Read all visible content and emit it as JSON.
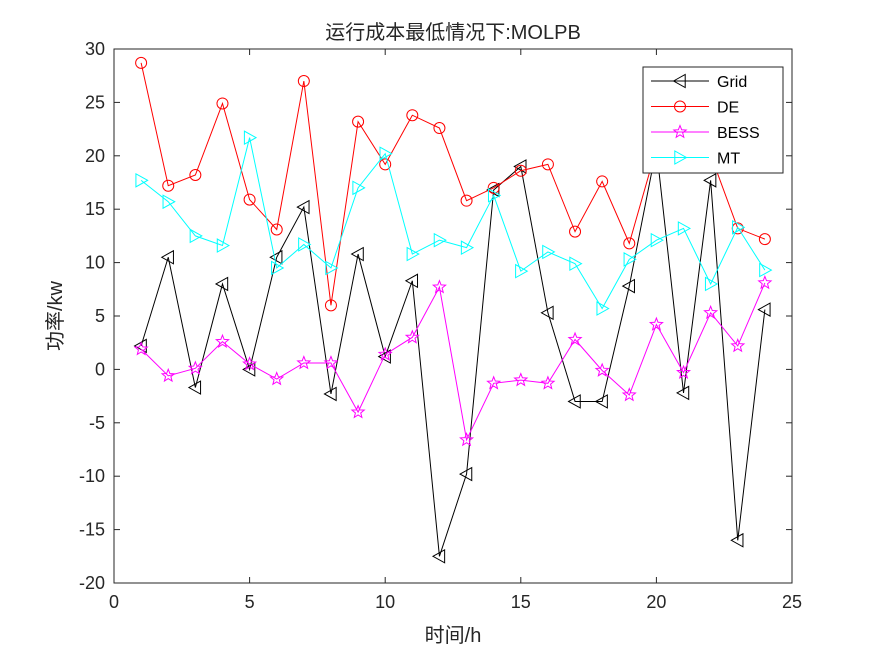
{
  "chart_data": {
    "type": "line",
    "title": "运行成本最低情况下:MOLPB",
    "xlabel": "时间/h",
    "ylabel": "功率/kw",
    "xlim": [
      0,
      25
    ],
    "ylim": [
      -20,
      30
    ],
    "xticks": [
      0,
      5,
      10,
      15,
      20,
      25
    ],
    "yticks": [
      -20,
      -15,
      -10,
      -5,
      0,
      5,
      10,
      15,
      20,
      25,
      30
    ],
    "legend_position": "top-right",
    "x": [
      1,
      2,
      3,
      4,
      5,
      6,
      7,
      8,
      9,
      10,
      11,
      12,
      13,
      14,
      15,
      16,
      17,
      18,
      19,
      20,
      21,
      22,
      23,
      24
    ],
    "series": [
      {
        "name": "Grid",
        "color": "#000000",
        "marker": "triangle-left",
        "values": [
          2.2,
          10.5,
          -1.7,
          8.0,
          0.0,
          10.5,
          15.2,
          -2.3,
          10.8,
          1.2,
          8.3,
          -17.5,
          -9.8,
          16.8,
          19.0,
          5.3,
          -3.0,
          -3.0,
          7.8,
          20.7,
          -2.2,
          17.7,
          -16.0,
          5.6
        ]
      },
      {
        "name": "DE",
        "color": "#ff0000",
        "marker": "circle",
        "values": [
          28.7,
          17.2,
          18.2,
          24.9,
          15.9,
          13.1,
          27.0,
          6.0,
          23.2,
          19.2,
          23.8,
          22.6,
          15.8,
          17.0,
          18.6,
          19.2,
          12.9,
          17.6,
          11.8,
          20.7,
          20.7,
          20.1,
          13.2,
          12.2
        ]
      },
      {
        "name": "BESS",
        "color": "#ff00ff",
        "marker": "star",
        "values": [
          1.9,
          -0.6,
          0.1,
          2.6,
          0.5,
          -0.9,
          0.6,
          0.6,
          -4.0,
          1.4,
          3.0,
          7.7,
          -6.6,
          -1.3,
          -1.0,
          -1.3,
          2.8,
          -0.1,
          -2.4,
          4.2,
          -0.3,
          5.3,
          2.2,
          8.1
        ]
      },
      {
        "name": "MT",
        "color": "#00ffff",
        "marker": "triangle-right",
        "values": [
          17.7,
          15.7,
          12.5,
          11.6,
          21.7,
          9.5,
          11.7,
          9.5,
          17.0,
          20.2,
          10.8,
          12.1,
          11.4,
          16.3,
          9.2,
          11.0,
          9.9,
          5.7,
          10.3,
          12.1,
          13.2,
          8.0,
          13.3,
          9.3
        ]
      }
    ]
  }
}
